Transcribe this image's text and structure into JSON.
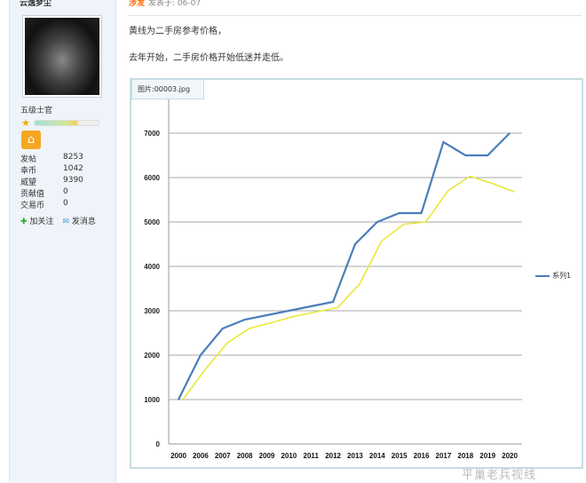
{
  "user": {
    "name": "云逸梦尘",
    "rank": "五级士官",
    "stats": [
      {
        "label": "发帖",
        "value": "8253"
      },
      {
        "label": "幸币",
        "value": "1042"
      },
      {
        "label": "威望",
        "value": "9390"
      },
      {
        "label": "贡献值",
        "value": "0"
      },
      {
        "label": "交易币",
        "value": "0"
      }
    ],
    "follow": "加关注",
    "message": "发消息",
    "level_progress": 0.7
  },
  "post": {
    "author": "涉发",
    "posted": "发表于: 06-07",
    "lines": [
      "黄线为二手房参考价格，",
      "去年开始，二手房价格开始低迷并走低。"
    ],
    "image_label": "图片:00003.jpg",
    "watermark": "平巢老兵视线"
  },
  "chart_data": {
    "type": "line",
    "categories": [
      "2000",
      "2006",
      "2007",
      "2008",
      "2009",
      "2010",
      "2011",
      "2012",
      "2013",
      "2014",
      "2015",
      "2016",
      "2017",
      "2018",
      "2019",
      "2020"
    ],
    "series": [
      {
        "name": "系列1",
        "color": "#4a7ebb",
        "values": [
          1000,
          2000,
          2600,
          2800,
          2900,
          3000,
          3100,
          3200,
          4500,
          5000,
          5200,
          5200,
          6800,
          6500,
          6500,
          7000
        ]
      },
      {
        "color": "#e8e83a",
        "values": [
          1000,
          1670,
          2270,
          2600,
          2730,
          2870,
          2970,
          3070,
          3600,
          4570,
          4950,
          5000,
          5700,
          6030,
          5870,
          5680
        ]
      }
    ],
    "yticks": [
      0,
      1000,
      2000,
      3000,
      4000,
      5000,
      6000,
      7000
    ],
    "ylim": [
      0,
      7000
    ],
    "grid": true,
    "legend": "right"
  }
}
